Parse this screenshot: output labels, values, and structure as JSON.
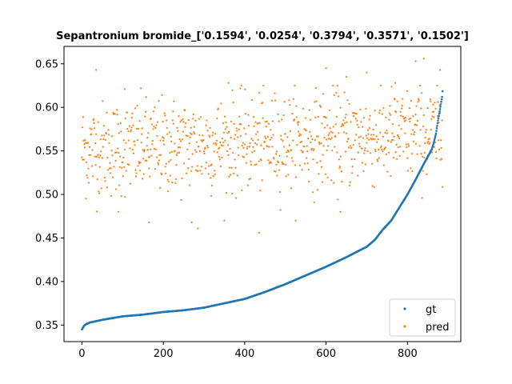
{
  "chart_data": {
    "type": "scatter",
    "title": "Sepantronium bromide_['0.1594', '0.0254', '0.3794', '0.3571', '0.1502']",
    "xlabel": "",
    "ylabel": "",
    "xlim": [
      -44,
      931
    ],
    "ylim": [
      0.331,
      0.67
    ],
    "xticks": [
      0,
      200,
      400,
      600,
      800
    ],
    "yticks": [
      0.35,
      0.4,
      0.45,
      0.5,
      0.55,
      0.6,
      0.65
    ],
    "ytick_labels": [
      "0.35",
      "0.40",
      "0.45",
      "0.50",
      "0.55",
      "0.60",
      "0.65"
    ],
    "xtick_labels": [
      "0",
      "200",
      "400",
      "600",
      "800"
    ],
    "grid": false,
    "legend_position": "lower right",
    "n_points": 887,
    "series": [
      {
        "name": "gt",
        "color": "#1f77b4",
        "description_points": [
          [
            0,
            0.345
          ],
          [
            5,
            0.349
          ],
          [
            10,
            0.351
          ],
          [
            20,
            0.353
          ],
          [
            50,
            0.356
          ],
          [
            100,
            0.36
          ],
          [
            150,
            0.362
          ],
          [
            200,
            0.365
          ],
          [
            250,
            0.367
          ],
          [
            300,
            0.37
          ],
          [
            350,
            0.375
          ],
          [
            400,
            0.38
          ],
          [
            450,
            0.388
          ],
          [
            500,
            0.397
          ],
          [
            550,
            0.407
          ],
          [
            600,
            0.417
          ],
          [
            650,
            0.428
          ],
          [
            700,
            0.44
          ],
          [
            720,
            0.448
          ],
          [
            740,
            0.46
          ],
          [
            760,
            0.47
          ],
          [
            780,
            0.485
          ],
          [
            800,
            0.5
          ],
          [
            820,
            0.517
          ],
          [
            840,
            0.535
          ],
          [
            860,
            0.552
          ],
          [
            865,
            0.56
          ],
          [
            870,
            0.57
          ],
          [
            875,
            0.585
          ],
          [
            880,
            0.598
          ],
          [
            885,
            0.612
          ],
          [
            887,
            0.625
          ]
        ]
      },
      {
        "name": "pred",
        "color": "#ff7f0e",
        "mean": 0.556,
        "spread": 0.032,
        "notable_points": [
          [
            35,
            0.643
          ],
          [
            105,
            0.621
          ],
          [
            360,
            0.628
          ],
          [
            435,
            0.456
          ],
          [
            600,
            0.645
          ],
          [
            650,
            0.635
          ],
          [
            700,
            0.64
          ],
          [
            770,
            0.628
          ],
          [
            820,
            0.653
          ],
          [
            840,
            0.656
          ],
          [
            880,
            0.643
          ],
          [
            285,
            0.461
          ],
          [
            270,
            0.468
          ],
          [
            165,
            0.468
          ],
          [
            90,
            0.48
          ],
          [
            635,
            0.48
          ]
        ]
      }
    ]
  }
}
